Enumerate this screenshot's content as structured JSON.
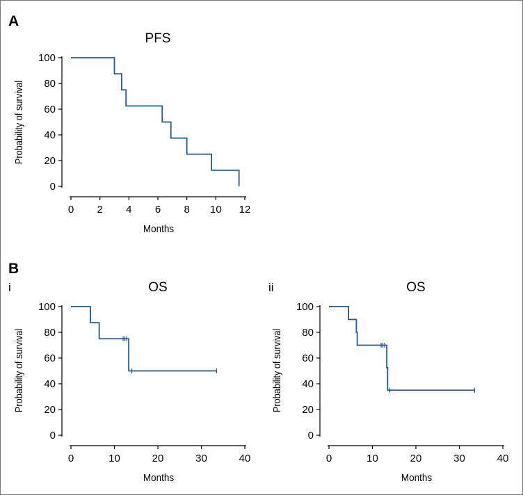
{
  "panels": {
    "a_label": "A",
    "b_label": "B",
    "b_i_label": "i",
    "b_ii_label": "ii"
  },
  "colors": {
    "line": "#1f5a96",
    "axis": "#000000"
  },
  "chart_data": [
    {
      "id": "pfs",
      "type": "line",
      "style": "step",
      "title": "PFS",
      "xlabel": "Months",
      "ylabel": "Probability of survival",
      "xlim": [
        0,
        12
      ],
      "ylim": [
        0,
        100
      ],
      "xticks": [
        0,
        2,
        4,
        6,
        8,
        10,
        12
      ],
      "yticks": [
        0,
        20,
        40,
        60,
        80,
        100
      ],
      "series": [
        {
          "name": "PFS",
          "x": [
            0,
            3.0,
            3.5,
            3.8,
            6.3,
            6.9,
            8.0,
            9.7,
            11.6,
            11.6
          ],
          "y": [
            100,
            87.5,
            75,
            62.5,
            50,
            37.5,
            25,
            12.5,
            12.5,
            0
          ],
          "censored": []
        }
      ]
    },
    {
      "id": "os-i",
      "type": "line",
      "style": "step",
      "title": "OS",
      "xlabel": "Months",
      "ylabel": "Probability of survival",
      "xlim": [
        0,
        40
      ],
      "ylim": [
        0,
        100
      ],
      "xticks": [
        0,
        10,
        20,
        30,
        40
      ],
      "yticks": [
        0,
        20,
        40,
        60,
        80,
        100
      ],
      "series": [
        {
          "name": "OS",
          "x": [
            0,
            4.5,
            6.5,
            13.3,
            33.5
          ],
          "y": [
            100,
            87.5,
            75,
            50,
            50
          ],
          "censored": [
            {
              "x": 12.0,
              "y": 75
            },
            {
              "x": 12.4,
              "y": 75
            },
            {
              "x": 12.8,
              "y": 75
            },
            {
              "x": 14.0,
              "y": 50
            },
            {
              "x": 33.5,
              "y": 50
            }
          ]
        }
      ]
    },
    {
      "id": "os-ii",
      "type": "line",
      "style": "step",
      "title": "OS",
      "xlabel": "Months",
      "ylabel": "Probability of survival",
      "xlim": [
        0,
        40
      ],
      "ylim": [
        0,
        100
      ],
      "xticks": [
        0,
        10,
        20,
        30,
        40
      ],
      "yticks": [
        0,
        20,
        40,
        60,
        80,
        100
      ],
      "series": [
        {
          "name": "OS",
          "x": [
            0,
            4.5,
            6.3,
            6.5,
            13.3,
            13.5,
            33.5
          ],
          "y": [
            100,
            90,
            80,
            70,
            52.5,
            35,
            35
          ],
          "censored": [
            {
              "x": 12.0,
              "y": 70
            },
            {
              "x": 12.4,
              "y": 70
            },
            {
              "x": 12.8,
              "y": 70
            },
            {
              "x": 14.0,
              "y": 35
            },
            {
              "x": 33.5,
              "y": 35
            }
          ]
        }
      ]
    }
  ]
}
